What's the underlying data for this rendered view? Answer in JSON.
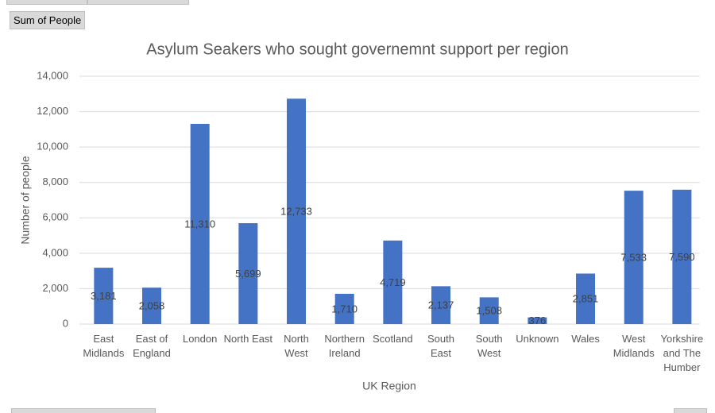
{
  "chart_data": {
    "type": "bar",
    "field_button": "Sum of People",
    "title": "Asylum Seakers who sought governemnt support per region",
    "x_label": "UK Region",
    "y_label": "Number of people",
    "categories": [
      "East Midlands",
      "East of England",
      "London",
      "North East",
      "North West",
      "Northern Ireland",
      "Scotland",
      "South East",
      "South West",
      "Unknown",
      "Wales",
      "West Midlands",
      "Yorkshire and The Humber"
    ],
    "values": [
      3181,
      2058,
      11310,
      5699,
      12733,
      1710,
      4719,
      2137,
      1508,
      376,
      2851,
      7533,
      7590
    ],
    "value_labels": [
      "3,181",
      "2,058",
      "11,310",
      "5,699",
      "12,733",
      "1,710",
      "4,719",
      "2,137",
      "1,508",
      "376",
      "2,851",
      "7,533",
      "7,590"
    ],
    "color": "#4472c4",
    "ylim": [
      0,
      14000
    ],
    "yticks": [
      0,
      {
        "value": 2000,
        "label": "2,000"
      },
      {
        "value": 4000,
        "label": "4,000"
      },
      {
        "value": 6000,
        "label": "6,000"
      },
      {
        "value": 8000,
        "label": "8,000"
      },
      {
        "value": 10000,
        "label": "10,000"
      },
      {
        "value": 12000,
        "label": "12,000"
      },
      {
        "value": 14000,
        "label": "14,000"
      }
    ],
    "grid": true
  }
}
